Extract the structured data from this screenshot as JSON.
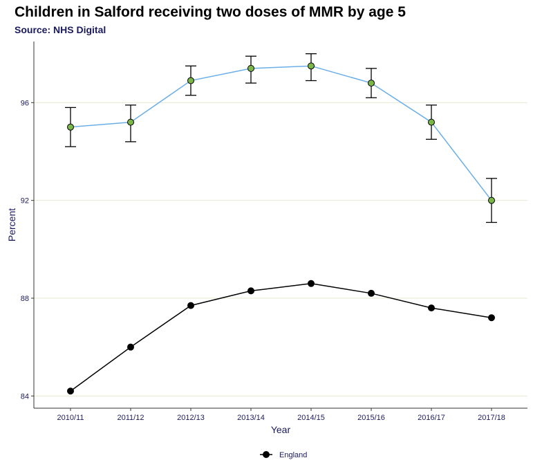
{
  "chart_data": {
    "type": "line",
    "title": "Children in Salford receiving two doses of MMR by age 5",
    "subtitle": "Source: NHS Digital",
    "xlabel": "Year",
    "ylabel": "Percent",
    "categories": [
      "2010/11",
      "2011/12",
      "2012/13",
      "2013/14",
      "2014/15",
      "2015/16",
      "2016/17",
      "2017/18"
    ],
    "ylim": [
      83.5,
      98.5
    ],
    "yticks": [
      84,
      88,
      92,
      96
    ],
    "grid": "horizontal major",
    "legend_position": "bottom",
    "series": [
      {
        "values": [
          95.0,
          95.2,
          96.9,
          97.4,
          97.5,
          96.8,
          95.2,
          92.0
        ],
        "error_low": [
          94.2,
          94.4,
          96.3,
          96.8,
          96.9,
          96.2,
          94.5,
          91.1
        ],
        "error_high": [
          95.8,
          95.9,
          97.5,
          97.9,
          98.0,
          97.4,
          95.9,
          92.9
        ],
        "line_color": "#6aaee8",
        "marker_color": "#7ab648"
      },
      {
        "name": "England",
        "values": [
          84.2,
          86.0,
          87.7,
          88.3,
          88.6,
          88.2,
          87.6,
          87.2
        ],
        "line_color": "#000000",
        "marker_color": "#000000"
      }
    ],
    "colors": {
      "grid": "#e6ead0",
      "axis": "#333333",
      "errorbar": "#000000"
    }
  }
}
